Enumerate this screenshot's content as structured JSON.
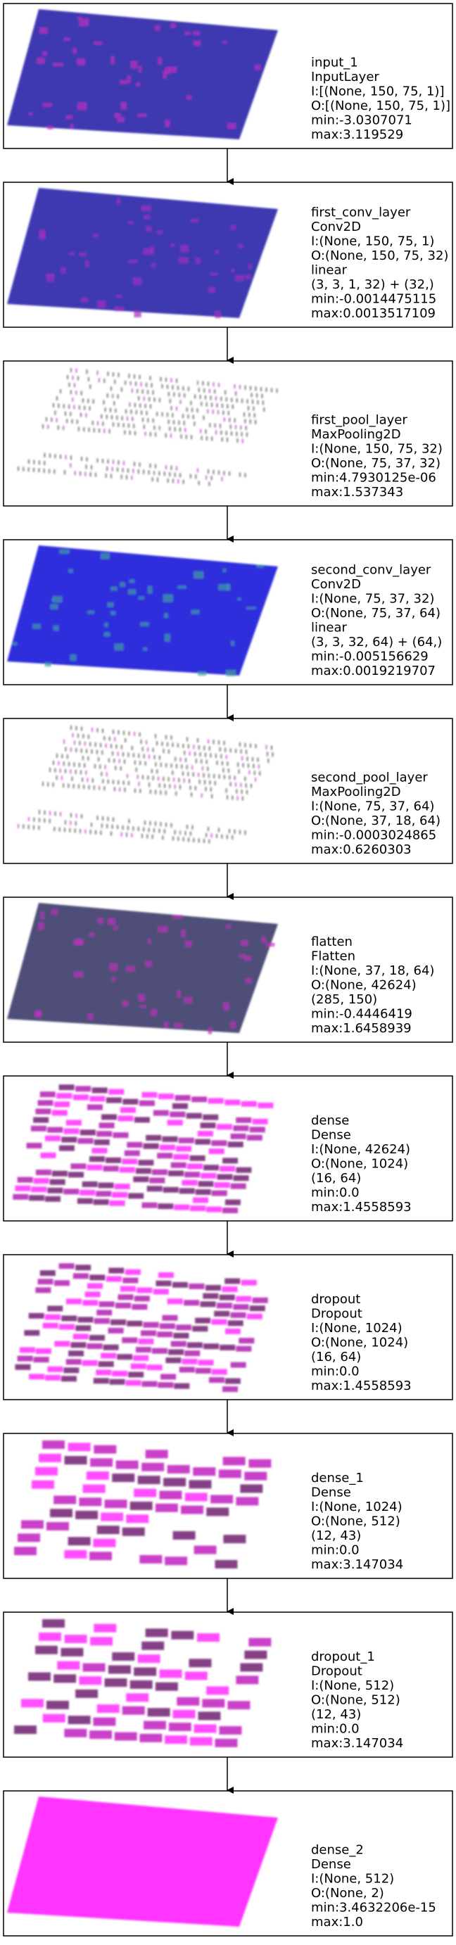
{
  "nodes": [
    {
      "lines": [
        "input_1",
        "InputLayer",
        "I:[(None, 150, 75, 1)]",
        "O:[(None, 150, 75, 1)]",
        "min:-3.0307071",
        "max:3.119529"
      ]
    },
    {
      "lines": [
        "first_conv_layer",
        "Conv2D",
        "I:(None, 150, 75, 1)",
        "O:(None, 150, 75, 32)",
        "linear",
        "(3, 3, 1, 32) + (32,)",
        "min:-0.0014475115",
        "max:0.0013517109"
      ]
    },
    {
      "lines": [
        "first_pool_layer",
        "MaxPooling2D",
        "I:(None, 150, 75, 32)",
        "O:(None, 75, 37, 32)",
        "min:4.7930125e-06",
        "max:1.537343"
      ]
    },
    {
      "lines": [
        "second_conv_layer",
        "Conv2D",
        "I:(None, 75, 37, 32)",
        "O:(None, 75, 37, 64)",
        "linear",
        "(3, 3, 32, 64) + (64,)",
        "min:-0.005156629",
        "max:0.0019219707"
      ]
    },
    {
      "lines": [
        "second_pool_layer",
        "MaxPooling2D",
        "I:(None, 75, 37, 64)",
        "O:(None, 37, 18, 64)",
        "min:-0.0003024865",
        "max:0.6260303"
      ]
    },
    {
      "lines": [
        "flatten",
        "Flatten",
        "I:(None, 37, 18, 64)",
        "O:(None, 42624)",
        "(285, 150)",
        "min:-0.4446419",
        "max:1.6458939"
      ]
    },
    {
      "lines": [
        "dense",
        "Dense",
        "I:(None, 42624)",
        "O:(None, 1024)",
        "(16, 64)",
        "min:0.0",
        "max:1.4558593"
      ]
    },
    {
      "lines": [
        "dropout",
        "Dropout",
        "I:(None, 1024)",
        "O:(None, 1024)",
        "(16, 64)",
        "min:0.0",
        "max:1.4558593"
      ]
    },
    {
      "lines": [
        "dense_1",
        "Dense",
        "I:(None, 1024)",
        "O:(None, 512)",
        "(12, 43)",
        "min:0.0",
        "max:3.147034"
      ]
    },
    {
      "lines": [
        "dropout_1",
        "Dropout",
        "I:(None, 512)",
        "O:(None, 512)",
        "(12, 43)",
        "min:0.0",
        "max:3.147034"
      ]
    },
    {
      "lines": [
        "dense_2",
        "Dense",
        "I:(None, 512)",
        "O:(None, 2)",
        "min:3.4632206e-15",
        "max:1.0"
      ]
    }
  ]
}
